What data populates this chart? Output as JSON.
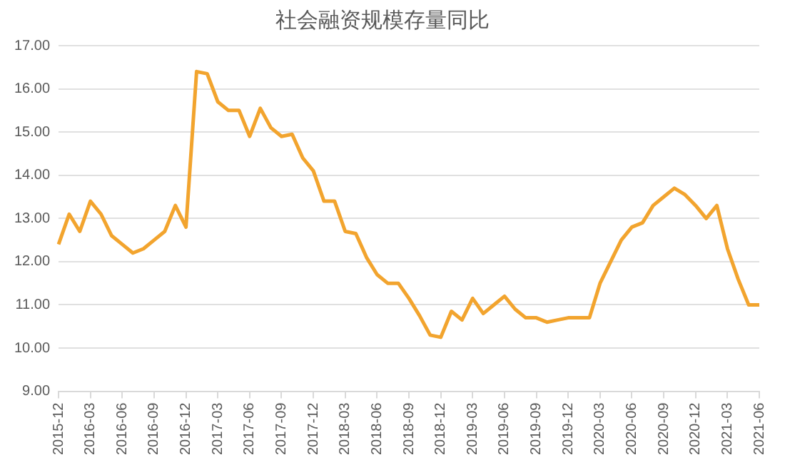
{
  "chart_data": {
    "type": "line",
    "title": "社会融资规模存量同比",
    "categories": [
      "2015-12",
      null,
      null,
      "2016-03",
      null,
      null,
      "2016-06",
      null,
      null,
      "2016-09",
      null,
      null,
      "2016-12",
      null,
      null,
      "2017-03",
      null,
      null,
      "2017-06",
      null,
      null,
      "2017-09",
      null,
      null,
      "2017-12",
      null,
      null,
      "2018-03",
      null,
      null,
      "2018-06",
      null,
      null,
      "2018-09",
      null,
      null,
      "2018-12",
      null,
      null,
      "2019-03",
      null,
      null,
      "2019-06",
      null,
      null,
      "2019-09",
      null,
      null,
      "2019-12",
      null,
      null,
      "2020-03",
      null,
      null,
      "2020-06",
      null,
      null,
      "2020-09",
      null,
      null,
      "2020-12",
      null,
      null,
      "2021-03",
      null,
      null,
      "2021-06"
    ],
    "series": [
      {
        "color": "#f2a42e",
        "values": [
          12.4,
          13.1,
          12.7,
          13.4,
          13.1,
          12.6,
          12.4,
          12.2,
          12.3,
          12.5,
          12.7,
          13.3,
          12.8,
          16.4,
          16.35,
          15.7,
          15.5,
          15.5,
          14.9,
          15.55,
          15.1,
          14.9,
          14.95,
          14.4,
          14.1,
          13.4,
          13.4,
          12.7,
          12.65,
          12.1,
          11.7,
          11.5,
          11.5,
          11.15,
          10.75,
          10.3,
          10.25,
          10.85,
          10.65,
          11.15,
          10.8,
          11.0,
          11.2,
          10.9,
          10.7,
          10.7,
          10.6,
          10.65,
          10.7,
          10.7,
          10.7,
          11.5,
          12.0,
          12.5,
          12.8,
          12.9,
          13.3,
          13.5,
          13.7,
          13.55,
          13.3,
          13.0,
          13.3,
          12.3,
          11.6,
          11.0,
          11.0
        ]
      }
    ],
    "ylim": [
      9,
      17
    ],
    "yticks": [
      {
        "value": 9,
        "label": "9.00"
      },
      {
        "value": 10,
        "label": "10.00"
      },
      {
        "value": 11,
        "label": "11.00"
      },
      {
        "value": 12,
        "label": "12.00"
      },
      {
        "value": 13,
        "label": "13.00"
      },
      {
        "value": 14,
        "label": "14.00"
      },
      {
        "value": 15,
        "label": "15.00"
      },
      {
        "value": 16,
        "label": "16.00"
      },
      {
        "value": 17,
        "label": "17.00"
      }
    ],
    "grid": "y",
    "legend": false,
    "marker": "none",
    "line_style": "solid"
  }
}
